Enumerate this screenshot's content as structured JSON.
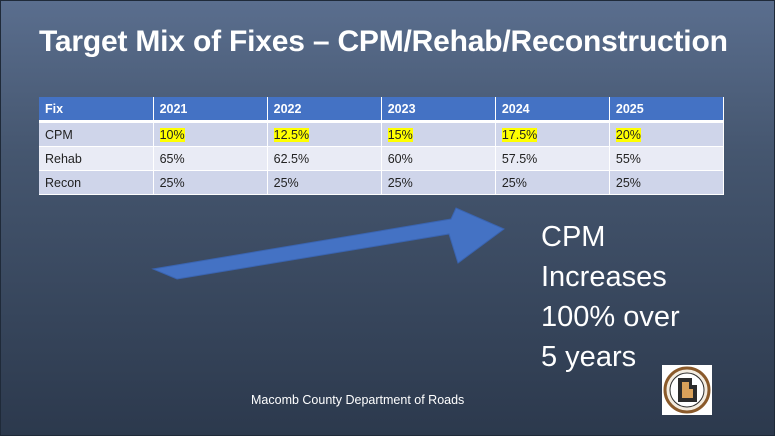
{
  "slide": {
    "title": "Target Mix of Fixes – CPM/Rehab/Reconstruction",
    "table": {
      "header": [
        "Fix",
        "2021",
        "2022",
        "2023",
        "2024",
        "2025"
      ],
      "rows": [
        {
          "label": "CPM",
          "values": [
            "10%",
            "12.5%",
            "15%",
            "17.5%",
            "20%"
          ],
          "highlighted": true
        },
        {
          "label": "Rehab",
          "values": [
            "65%",
            "62.5%",
            "60%",
            "57.5%",
            "55%"
          ],
          "highlighted": false
        },
        {
          "label": "Recon",
          "values": [
            "25%",
            "25%",
            "25%",
            "25%",
            "25%"
          ],
          "highlighted": false
        }
      ]
    },
    "callout": [
      "CPM",
      "Increases",
      "100% over",
      "5 years"
    ],
    "footer": "Macomb County Department of Roads",
    "colors": {
      "header_fill": "#4472c4",
      "highlight": "#ffff00",
      "arrow_fill": "#4472c4",
      "row_fill_dark": "#cfd5ea",
      "row_fill_light": "#e9ebf5"
    }
  }
}
